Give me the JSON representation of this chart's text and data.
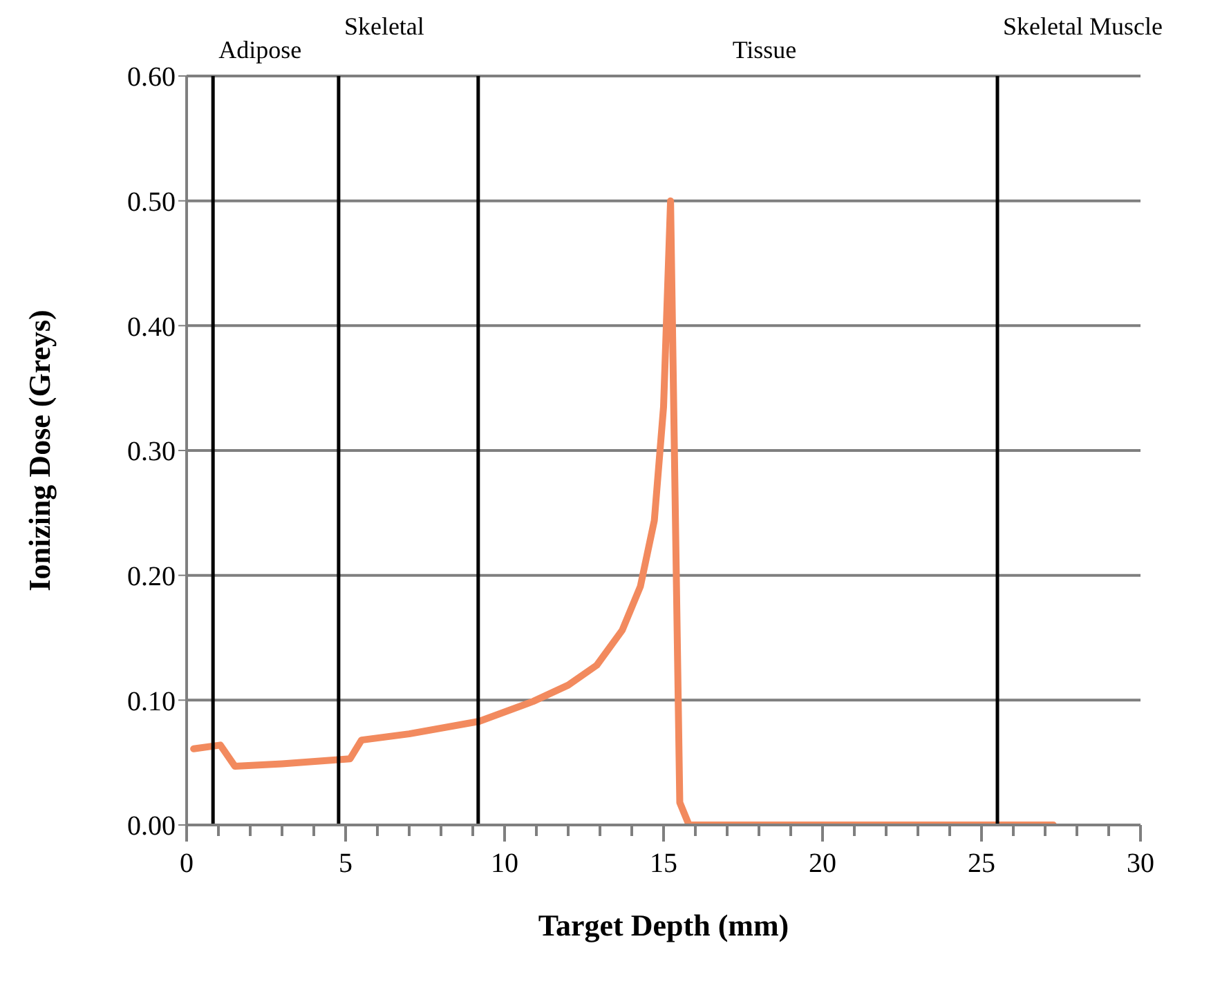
{
  "chart_data": {
    "type": "line",
    "xlabel": "Target Depth (mm)",
    "ylabel": "Ionizing Dose (Greys)",
    "series": [
      {
        "color": "#f28a5e",
        "x": [
          0.22,
          1.06,
          1.52,
          3.0,
          5.14,
          5.5,
          7.0,
          9.2,
          10.9,
          12.0,
          12.9,
          13.7,
          14.27,
          14.71,
          15.0,
          15.22,
          15.51,
          15.8,
          27.26
        ],
        "values": [
          0.061,
          0.064,
          0.047,
          0.049,
          0.053,
          0.068,
          0.073,
          0.083,
          0.099,
          0.112,
          0.128,
          0.156,
          0.191,
          0.244,
          0.335,
          0.5,
          0.018,
          0.0,
          0.0
        ]
      }
    ],
    "xlim": [
      0,
      30
    ],
    "ylim": [
      0,
      0.6
    ],
    "xticks": [
      0,
      {
        "value": 1,
        "label": null
      },
      {
        "value": 2,
        "label": null
      },
      {
        "value": 3,
        "label": null
      },
      {
        "value": 4,
        "label": null
      },
      5,
      {
        "value": 6,
        "label": null
      },
      {
        "value": 7,
        "label": null
      },
      {
        "value": 8,
        "label": null
      },
      {
        "value": 9,
        "label": null
      },
      10,
      {
        "value": 11,
        "label": null
      },
      {
        "value": 12,
        "label": null
      },
      {
        "value": 13,
        "label": null
      },
      {
        "value": 14,
        "label": null
      },
      15,
      {
        "value": 16,
        "label": null
      },
      {
        "value": 17,
        "label": null
      },
      {
        "value": 18,
        "label": null
      },
      {
        "value": 19,
        "label": null
      },
      20,
      {
        "value": 21,
        "label": null
      },
      {
        "value": 22,
        "label": null
      },
      {
        "value": 23,
        "label": null
      },
      {
        "value": 24,
        "label": null
      },
      25,
      {
        "value": 26,
        "label": null
      },
      {
        "value": 27,
        "label": null
      },
      {
        "value": 28,
        "label": null
      },
      {
        "value": 29,
        "label": null
      },
      30
    ],
    "yticks": [
      {
        "value": 0,
        "label": "0.00"
      },
      {
        "value": 0.1,
        "label": "0.10"
      },
      {
        "value": 0.2,
        "label": "0.20"
      },
      {
        "value": 0.3,
        "label": "0.30"
      },
      {
        "value": 0.4,
        "label": "0.40"
      },
      {
        "value": 0.5,
        "label": "0.50"
      },
      {
        "value": 0.6,
        "label": "0.60"
      }
    ],
    "grid": "y",
    "marker": "none",
    "line_style": "solid",
    "legend": false,
    "ref_lines": [
      {
        "axis": "x",
        "value": 0.83,
        "label": "Adipose",
        "color": "#000000"
      },
      {
        "axis": "x",
        "value": 4.78,
        "label": "Skeletal",
        "color": "#000000"
      },
      {
        "axis": "x",
        "value": 9.17,
        "color": "#000000"
      },
      {
        "axis": "x",
        "value": 25.5,
        "label": "Skeletal Muscle",
        "color": "#000000"
      }
    ],
    "annotations": [
      "Tissue"
    ]
  }
}
